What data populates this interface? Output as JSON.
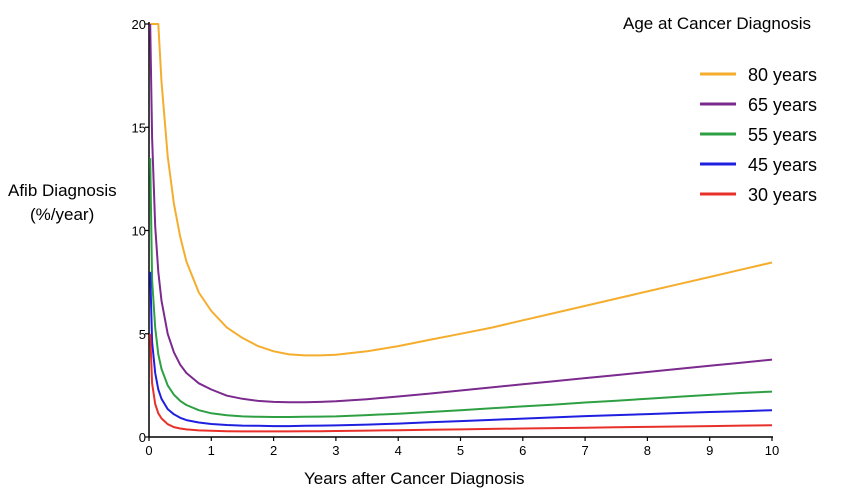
{
  "chart_data": {
    "type": "line",
    "title": "",
    "legend_title": "Age at Cancer Diagnosis",
    "xlabel": "Years after Cancer Diagnosis",
    "ylabel_line1": "Afib Diagnosis",
    "ylabel_line2": "(%/year)",
    "xlim": [
      0,
      10
    ],
    "ylim": [
      0,
      20
    ],
    "x_ticks": [
      0,
      1,
      2,
      3,
      4,
      5,
      6,
      7,
      8,
      9,
      10
    ],
    "y_ticks": [
      0,
      5,
      10,
      15,
      20
    ],
    "grid": false,
    "legend_position": "top-right",
    "x": [
      0.02,
      0.05,
      0.1,
      0.15,
      0.2,
      0.3,
      0.4,
      0.5,
      0.6,
      0.8,
      1.0,
      1.25,
      1.5,
      1.75,
      2.0,
      2.25,
      2.5,
      2.75,
      3.0,
      3.5,
      4.0,
      4.5,
      5.0,
      5.5,
      6.0,
      6.5,
      7.0,
      7.5,
      8.0,
      8.5,
      9.0,
      9.5,
      10.0
    ],
    "series": [
      {
        "name": "80 years",
        "color": "#f5ad2e",
        "values": [
          20,
          20,
          20,
          20,
          17.2,
          13.6,
          11.3,
          9.7,
          8.5,
          7.0,
          6.1,
          5.3,
          4.8,
          4.4,
          4.15,
          4.0,
          3.95,
          3.95,
          3.98,
          4.15,
          4.4,
          4.7,
          5.0,
          5.3,
          5.65,
          6.0,
          6.35,
          6.7,
          7.05,
          7.4,
          7.75,
          8.1,
          8.45
        ]
      },
      {
        "name": "65 years",
        "color": "#7b2a8e",
        "values": [
          20,
          14.5,
          10.2,
          8.0,
          6.6,
          5.0,
          4.1,
          3.5,
          3.1,
          2.6,
          2.3,
          2.0,
          1.85,
          1.75,
          1.7,
          1.68,
          1.68,
          1.7,
          1.73,
          1.83,
          1.96,
          2.1,
          2.25,
          2.4,
          2.55,
          2.7,
          2.85,
          3.0,
          3.15,
          3.3,
          3.45,
          3.6,
          3.75
        ]
      },
      {
        "name": "55 years",
        "color": "#2ea043",
        "values": [
          13.5,
          7.6,
          5.3,
          4.0,
          3.3,
          2.5,
          2.05,
          1.75,
          1.55,
          1.3,
          1.15,
          1.05,
          1.0,
          0.98,
          0.97,
          0.97,
          0.98,
          0.99,
          1.0,
          1.06,
          1.13,
          1.21,
          1.3,
          1.39,
          1.48,
          1.57,
          1.67,
          1.76,
          1.85,
          1.95,
          2.04,
          2.13,
          2.2
        ]
      },
      {
        "name": "45 years",
        "color": "#1f1fe0",
        "values": [
          8.0,
          4.6,
          3.1,
          2.3,
          1.85,
          1.35,
          1.1,
          0.93,
          0.82,
          0.7,
          0.63,
          0.58,
          0.55,
          0.54,
          0.53,
          0.53,
          0.54,
          0.55,
          0.56,
          0.6,
          0.65,
          0.71,
          0.77,
          0.83,
          0.89,
          0.95,
          1.01,
          1.06,
          1.11,
          1.16,
          1.21,
          1.25,
          1.3
        ]
      },
      {
        "name": "30 years",
        "color": "#e8302a",
        "values": [
          5.0,
          2.6,
          1.6,
          1.15,
          0.9,
          0.62,
          0.48,
          0.41,
          0.37,
          0.32,
          0.3,
          0.28,
          0.27,
          0.27,
          0.27,
          0.27,
          0.28,
          0.28,
          0.29,
          0.31,
          0.33,
          0.35,
          0.37,
          0.39,
          0.41,
          0.43,
          0.45,
          0.47,
          0.49,
          0.51,
          0.53,
          0.55,
          0.57
        ]
      }
    ]
  }
}
